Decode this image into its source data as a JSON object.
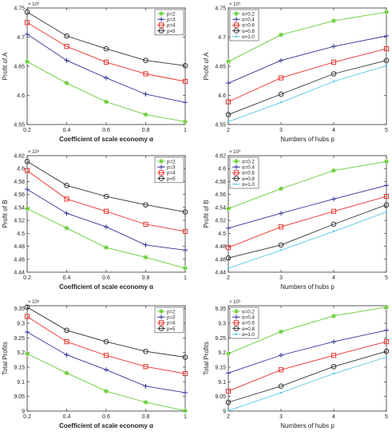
{
  "figure": {
    "background": "#ffffff"
  },
  "chart_data": [
    {
      "type": "line",
      "xlabel": "Coefficient of scale economy α",
      "ylabel": "Profit  of A",
      "exponent": "× 10⁹",
      "x": [
        0.2,
        0.4,
        0.6,
        0.8,
        1.0
      ],
      "xticks": [
        "0.2",
        "0.4",
        "0.6",
        "0.8",
        "1"
      ],
      "xlim": [
        0.2,
        1.0
      ],
      "ylim": [
        4.55,
        4.75
      ],
      "yticks": [
        "4.55",
        "4.6",
        "4.65",
        "4.7",
        "4.75"
      ],
      "ytick_values": [
        4.55,
        4.6,
        4.65,
        4.7,
        4.75
      ],
      "legend_position": "top-right",
      "series": [
        {
          "name": "p=2",
          "color": "#66cc33",
          "marker": "star",
          "values": [
            4.658,
            4.621,
            4.589,
            4.567,
            4.555
          ]
        },
        {
          "name": "p=3",
          "color": "#333399",
          "marker": "plus",
          "values": [
            4.705,
            4.66,
            4.63,
            4.602,
            4.588
          ]
        },
        {
          "name": "p=4",
          "color": "#e8322b",
          "marker": "square",
          "values": [
            4.725,
            4.684,
            4.657,
            4.637,
            4.624
          ]
        },
        {
          "name": "p=5",
          "color": "#333333",
          "marker": "circle",
          "values": [
            4.743,
            4.702,
            4.68,
            4.66,
            4.651
          ]
        }
      ]
    },
    {
      "type": "line",
      "xlabel": "Numbers of hubs p",
      "ylabel": "Profit  of A",
      "exponent": "× 10⁹",
      "x": [
        2,
        3,
        4,
        5
      ],
      "xticks": [
        "2",
        "3",
        "4",
        "5"
      ],
      "xlim": [
        2,
        5
      ],
      "ylim": [
        4.55,
        4.75
      ],
      "yticks": [
        "4.55",
        "4.6",
        "4.65",
        "4.7",
        "4.75"
      ],
      "ytick_values": [
        4.55,
        4.6,
        4.65,
        4.7,
        4.75
      ],
      "legend_position": "top-left",
      "series": [
        {
          "name": "α=0.2",
          "color": "#66cc33",
          "marker": "star",
          "values": [
            4.658,
            4.704,
            4.728,
            4.743
          ]
        },
        {
          "name": "α=0.4",
          "color": "#333399",
          "marker": "plus",
          "values": [
            4.621,
            4.66,
            4.684,
            4.702
          ]
        },
        {
          "name": "α=0.6",
          "color": "#e8322b",
          "marker": "square",
          "values": [
            4.589,
            4.63,
            4.657,
            4.68
          ]
        },
        {
          "name": "α=0.8",
          "color": "#333333",
          "marker": "circle",
          "values": [
            4.567,
            4.602,
            4.637,
            4.66
          ]
        },
        {
          "name": "α=1.0",
          "color": "#55c6e8",
          "marker": "dot",
          "values": [
            4.555,
            4.588,
            4.624,
            4.651
          ]
        }
      ]
    },
    {
      "type": "line",
      "xlabel": "Coefficient of scale economy α",
      "ylabel": "Profit  of B",
      "exponent": "× 10⁹",
      "x": [
        0.2,
        0.4,
        0.6,
        0.8,
        1.0
      ],
      "xticks": [
        "0.2",
        "0.4",
        "0.6",
        "0.8",
        "1"
      ],
      "xlim": [
        0.2,
        1.0
      ],
      "ylim": [
        4.44,
        4.62
      ],
      "yticks": [
        "4.44",
        "4.46",
        "4.48",
        "4.5",
        "4.52",
        "4.54",
        "4.56",
        "4.58",
        "4.6",
        "4.62"
      ],
      "ytick_values": [
        4.44,
        4.46,
        4.48,
        4.5,
        4.52,
        4.54,
        4.56,
        4.58,
        4.6,
        4.62
      ],
      "legend_position": "top-right",
      "series": [
        {
          "name": "p=2",
          "color": "#66cc33",
          "marker": "star",
          "values": [
            4.538,
            4.508,
            4.478,
            4.463,
            4.446
          ]
        },
        {
          "name": "p=3",
          "color": "#333399",
          "marker": "plus",
          "values": [
            4.568,
            4.531,
            4.51,
            4.482,
            4.474
          ]
        },
        {
          "name": "p=4",
          "color": "#e8322b",
          "marker": "square",
          "values": [
            4.597,
            4.553,
            4.534,
            4.514,
            4.503
          ]
        },
        {
          "name": "p=5",
          "color": "#333333",
          "marker": "circle",
          "values": [
            4.611,
            4.574,
            4.557,
            4.544,
            4.533
          ]
        }
      ]
    },
    {
      "type": "line",
      "xlabel": "Numbers of hubs p",
      "ylabel": "Profit  of B",
      "exponent": "× 10⁹",
      "x": [
        2,
        3,
        4,
        5
      ],
      "xticks": [
        "2",
        "3",
        "4",
        "5"
      ],
      "xlim": [
        2,
        5
      ],
      "ylim": [
        4.44,
        4.62
      ],
      "yticks": [
        "4.44",
        "4.46",
        "4.48",
        "4.5",
        "4.52",
        "4.54",
        "4.56",
        "4.58",
        "4.6",
        "4.62"
      ],
      "ytick_values": [
        4.44,
        4.46,
        4.48,
        4.5,
        4.52,
        4.54,
        4.56,
        4.58,
        4.6,
        4.62
      ],
      "legend_position": "top-left",
      "series": [
        {
          "name": "α=0.2",
          "color": "#66cc33",
          "marker": "star",
          "values": [
            4.538,
            4.569,
            4.597,
            4.611
          ]
        },
        {
          "name": "α=0.4",
          "color": "#333399",
          "marker": "plus",
          "values": [
            4.508,
            4.531,
            4.553,
            4.574
          ]
        },
        {
          "name": "α=0.6",
          "color": "#e8322b",
          "marker": "square",
          "values": [
            4.478,
            4.51,
            4.534,
            4.557
          ]
        },
        {
          "name": "α=0.8",
          "color": "#333333",
          "marker": "circle",
          "values": [
            4.462,
            4.482,
            4.514,
            4.544
          ]
        },
        {
          "name": "α=1.0",
          "color": "#55c6e8",
          "marker": "dot",
          "values": [
            4.446,
            4.474,
            4.503,
            4.533
          ]
        }
      ]
    },
    {
      "type": "line",
      "xlabel": "Coefficient of scale economy α",
      "ylabel": "Total Profits",
      "exponent": "× 10⁹",
      "x": [
        0.2,
        0.4,
        0.6,
        0.8,
        1.0
      ],
      "xticks": [
        "0.2",
        "0.4",
        "0.6",
        "0.8",
        "1"
      ],
      "xlim": [
        0.2,
        1.0
      ],
      "ylim": [
        9.0,
        9.36
      ],
      "yticks": [
        "9",
        "9.05",
        "9.1",
        "9.15",
        "9.2",
        "9.25",
        "9.3",
        "9.35"
      ],
      "ytick_values": [
        9.0,
        9.05,
        9.1,
        9.15,
        9.2,
        9.25,
        9.3,
        9.35
      ],
      "legend_position": "top-right",
      "series": [
        {
          "name": "p=2",
          "color": "#66cc33",
          "marker": "star",
          "values": [
            9.196,
            9.13,
            9.068,
            9.03,
            9.001
          ]
        },
        {
          "name": "p=3",
          "color": "#333399",
          "marker": "plus",
          "values": [
            9.27,
            9.192,
            9.141,
            9.085,
            9.063
          ]
        },
        {
          "name": "p=4",
          "color": "#e8322b",
          "marker": "square",
          "values": [
            9.323,
            9.237,
            9.19,
            9.152,
            9.128
          ]
        },
        {
          "name": "p=5",
          "color": "#333333",
          "marker": "circle",
          "values": [
            9.355,
            9.276,
            9.237,
            9.204,
            9.184
          ]
        }
      ]
    },
    {
      "type": "line",
      "xlabel": "Numbers of hubs p",
      "ylabel": "Total Profits",
      "exponent": "× 10⁹",
      "x": [
        2,
        3,
        4,
        5
      ],
      "xticks": [
        "2",
        "3",
        "4",
        "5"
      ],
      "xlim": [
        2,
        5
      ],
      "ylim": [
        9.0,
        9.36
      ],
      "yticks": [
        "9",
        "9.05",
        "9.1",
        "9.15",
        "9.2",
        "9.25",
        "9.3",
        "9.35"
      ],
      "ytick_values": [
        9.0,
        9.05,
        9.1,
        9.15,
        9.2,
        9.25,
        9.3,
        9.35
      ],
      "legend_position": "top-left",
      "series": [
        {
          "name": "α=0.2",
          "color": "#66cc33",
          "marker": "star",
          "values": [
            9.196,
            9.271,
            9.325,
            9.355
          ]
        },
        {
          "name": "α=0.4",
          "color": "#333399",
          "marker": "plus",
          "values": [
            9.13,
            9.191,
            9.237,
            9.276
          ]
        },
        {
          "name": "α=0.6",
          "color": "#e8322b",
          "marker": "square",
          "values": [
            9.068,
            9.141,
            9.19,
            9.237
          ]
        },
        {
          "name": "α=0.8",
          "color": "#333333",
          "marker": "circle",
          "values": [
            9.03,
            9.085,
            9.152,
            9.204
          ]
        },
        {
          "name": "α=1.0",
          "color": "#55c6e8",
          "marker": "dot",
          "values": [
            9.001,
            9.063,
            9.128,
            9.184
          ]
        }
      ]
    }
  ]
}
